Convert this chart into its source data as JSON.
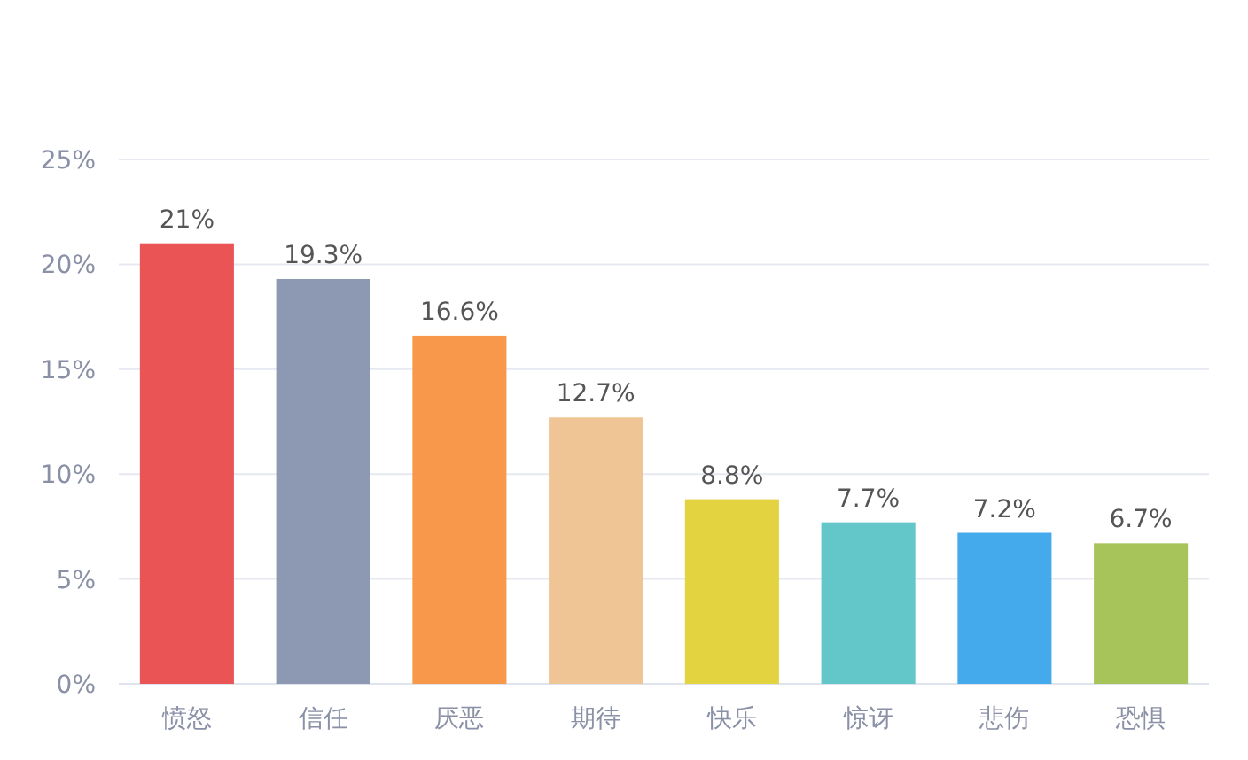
{
  "chart_data": {
    "type": "bar",
    "categories": [
      "愤怒",
      "信任",
      "厌恶",
      "期待",
      "快乐",
      "惊讶",
      "悲伤",
      "恐惧"
    ],
    "values": [
      21,
      19.3,
      16.6,
      12.7,
      8.8,
      7.7,
      7.2,
      6.7
    ],
    "colors": [
      "#eb5455",
      "#8d98b3",
      "#f7984a",
      "#f0c595",
      "#e3d341",
      "#63c7c9",
      "#45aaeb",
      "#a7c45b"
    ],
    "value_labels": [
      "21%",
      "19.3%",
      "16.6%",
      "12.7%",
      "8.8%",
      "7.7%",
      "7.2%",
      "6.7%"
    ],
    "ylim": [
      0,
      25
    ],
    "yticks": [
      {
        "value": 0,
        "label": "0%"
      },
      {
        "value": 5,
        "label": "5%"
      },
      {
        "value": 10,
        "label": "10%"
      },
      {
        "value": 15,
        "label": "15%"
      },
      {
        "value": 20,
        "label": "20%"
      },
      {
        "value": 25,
        "label": "25%"
      }
    ],
    "grid": "y"
  }
}
